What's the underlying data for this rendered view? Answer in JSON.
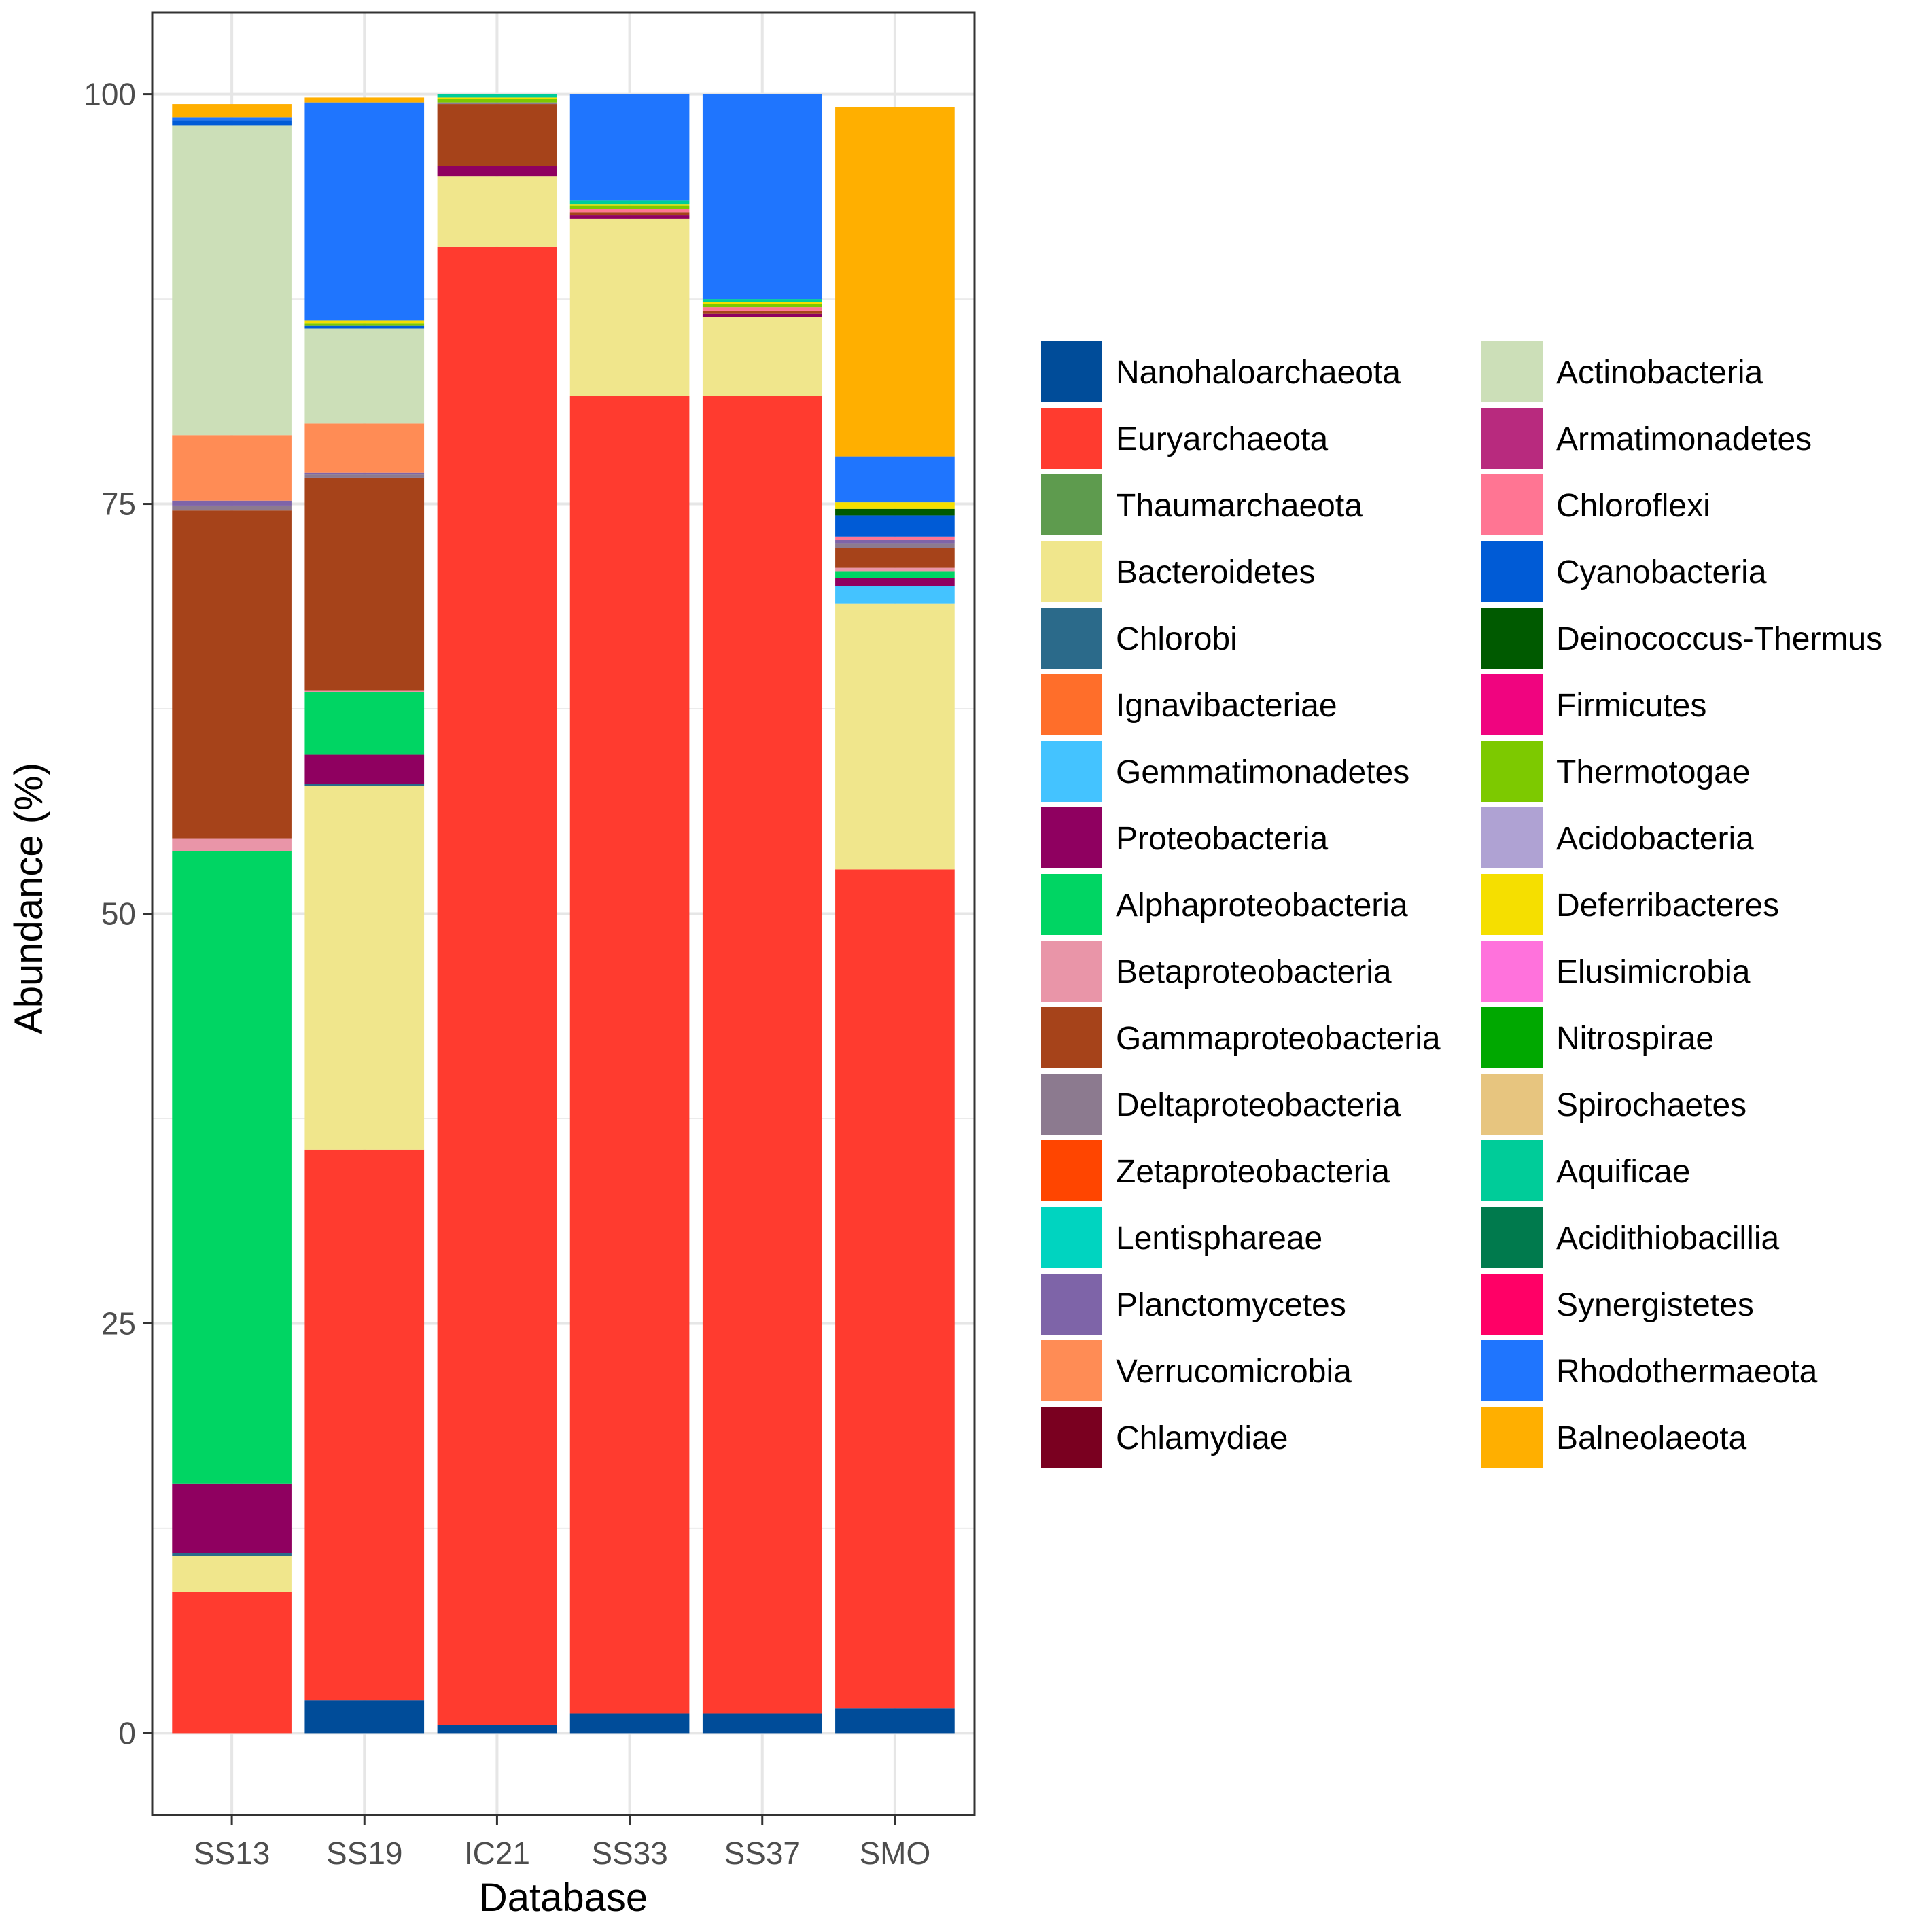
{
  "chart_data": {
    "type": "bar",
    "stacked": true,
    "title": "",
    "xlabel": "Database",
    "ylabel": "Abundance (%)",
    "ylim": [
      -5,
      105
    ],
    "yticks": [
      0,
      25,
      50,
      75,
      100
    ],
    "grid": true,
    "legend_position": "right",
    "categories": [
      "SS13",
      "SS19",
      "IC21",
      "SS33",
      "SS37",
      "SMO"
    ],
    "series": [
      {
        "name": "Nanohaloarchaeota",
        "color": "#004C99",
        "values": [
          0,
          2.0,
          0.5,
          1.2,
          1.2,
          1.5
        ]
      },
      {
        "name": "Euryarchaeota",
        "color": "#FF3B2F",
        "values": [
          8.6,
          33.6,
          90.2,
          80.4,
          80.4,
          51.2
        ]
      },
      {
        "name": "Thaumarchaeota",
        "color": "#5E9B4E",
        "values": [
          0,
          0,
          0,
          0,
          0,
          0
        ]
      },
      {
        "name": "Bacteroidetes",
        "color": "#F0E68C",
        "values": [
          2.2,
          22.2,
          4.3,
          10.8,
          4.8,
          16.2
        ]
      },
      {
        "name": "Chlorobi",
        "color": "#2B6A8A",
        "values": [
          0.2,
          0.1,
          0,
          0,
          0,
          0
        ]
      },
      {
        "name": "Ignavibacteriae",
        "color": "#FF6E2A",
        "values": [
          0,
          0,
          0,
          0,
          0,
          0
        ]
      },
      {
        "name": "Gemmatimonadetes",
        "color": "#44C3FF",
        "values": [
          0,
          0,
          0,
          0,
          0,
          1.1
        ]
      },
      {
        "name": "Proteobacteria",
        "color": "#8F0060",
        "values": [
          4.2,
          1.8,
          0.6,
          0.2,
          0.2,
          0.5
        ]
      },
      {
        "name": "Alphaproteobacteria",
        "color": "#00D563",
        "values": [
          38.6,
          3.8,
          0,
          0,
          0,
          0.4
        ]
      },
      {
        "name": "Betaproteobacteria",
        "color": "#E995A8",
        "values": [
          0.8,
          0.1,
          0,
          0,
          0,
          0.2
        ]
      },
      {
        "name": "Gammaproteobacteria",
        "color": "#A6431A",
        "values": [
          20.0,
          13.0,
          3.8,
          0.2,
          0.2,
          1.2
        ]
      },
      {
        "name": "Deltaproteobacteria",
        "color": "#8C7A8F",
        "values": [
          0.3,
          0.2,
          0.1,
          0,
          0,
          0.3
        ]
      },
      {
        "name": "Zetaproteobacteria",
        "color": "#FF4500",
        "values": [
          0,
          0,
          0,
          0,
          0,
          0
        ]
      },
      {
        "name": "Lentisphareae",
        "color": "#00D4C0",
        "values": [
          0,
          0,
          0,
          0,
          0,
          0
        ]
      },
      {
        "name": "Planctomycetes",
        "color": "#7E64A8",
        "values": [
          0.3,
          0.1,
          0,
          0,
          0,
          0.2
        ]
      },
      {
        "name": "Verrucomicrobia",
        "color": "#FF8C55",
        "values": [
          4.0,
          3.0,
          0,
          0,
          0,
          0
        ]
      },
      {
        "name": "Chlamydiae",
        "color": "#7A0020",
        "values": [
          0,
          0,
          0,
          0,
          0,
          0
        ]
      },
      {
        "name": "Actinobacteria",
        "color": "#CCDFB8",
        "values": [
          18.9,
          5.8,
          0,
          0,
          0,
          0
        ]
      },
      {
        "name": "Armatimonadetes",
        "color": "#B82A7E",
        "values": [
          0,
          0,
          0,
          0,
          0,
          0
        ]
      },
      {
        "name": "Chloroflexi",
        "color": "#FF7593",
        "values": [
          0,
          0,
          0,
          0.2,
          0.2,
          0.2
        ]
      },
      {
        "name": "Cyanobacteria",
        "color": "#005BD6",
        "values": [
          0.3,
          0.2,
          0,
          0,
          0,
          1.3
        ]
      },
      {
        "name": "Deinococcus-Thermus",
        "color": "#005A00",
        "values": [
          0,
          0,
          0,
          0,
          0,
          0.4
        ]
      },
      {
        "name": "Firmicutes",
        "color": "#F0047F",
        "values": [
          0,
          0,
          0,
          0,
          0,
          0
        ]
      },
      {
        "name": "Thermotogae",
        "color": "#7DC900",
        "values": [
          0,
          0.1,
          0.2,
          0.2,
          0.2,
          0
        ]
      },
      {
        "name": "Acidobacteria",
        "color": "#AFA2D3",
        "values": [
          0,
          0,
          0,
          0,
          0,
          0
        ]
      },
      {
        "name": "Deferribacteres",
        "color": "#F5DF00",
        "values": [
          0,
          0.2,
          0.1,
          0.1,
          0.1,
          0.4
        ]
      },
      {
        "name": "Elusimicrobia",
        "color": "#FF72DC",
        "values": [
          0,
          0,
          0,
          0,
          0,
          0
        ]
      },
      {
        "name": "Nitrospirae",
        "color": "#00A800",
        "values": [
          0,
          0,
          0,
          0,
          0,
          0
        ]
      },
      {
        "name": "Spirochaetes",
        "color": "#E7C57F",
        "values": [
          0,
          0,
          0,
          0,
          0,
          0
        ]
      },
      {
        "name": "Aquificae",
        "color": "#00CC99",
        "values": [
          0,
          0,
          0.2,
          0.2,
          0.2,
          0
        ]
      },
      {
        "name": "Acidithiobacillia",
        "color": "#007A4D",
        "values": [
          0,
          0,
          0,
          0,
          0,
          0
        ]
      },
      {
        "name": "Synergistetes",
        "color": "#FF0066",
        "values": [
          0,
          0,
          0,
          0,
          0,
          0
        ]
      },
      {
        "name": "Rhodothermaeota",
        "color": "#1F75FE",
        "values": [
          0.2,
          13.3,
          0,
          6.5,
          12.5,
          2.8
        ]
      },
      {
        "name": "Balneolaeota",
        "color": "#FFAF00",
        "values": [
          0.8,
          0.3,
          0,
          0,
          0,
          21.3
        ]
      }
    ]
  }
}
